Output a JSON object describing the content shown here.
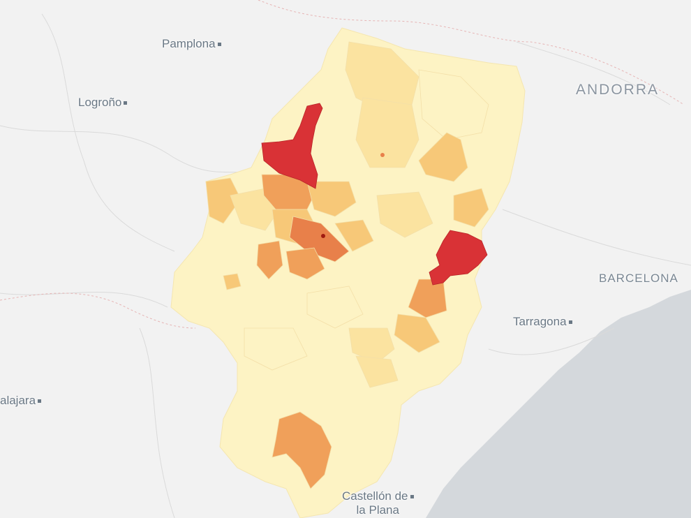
{
  "map": {
    "labels": {
      "pamplona": "Pamplona",
      "logrono": "Logroño",
      "andorra": "ANDORRA",
      "barcelona": "BARCELONA",
      "tarragona": "Tarragona",
      "guadalajara": "alajara",
      "castellon_line1": "Castellón de",
      "castellon_line2": "la Plana"
    },
    "colors": {
      "land": "#f2f2f2",
      "sea": "#d4d8dc",
      "lightest": "#fdf3c4",
      "light": "#fbe3a0",
      "medium": "#f7c878",
      "orange": "#f0a05a",
      "dark_orange": "#e8804a",
      "red": "#d93236"
    }
  }
}
